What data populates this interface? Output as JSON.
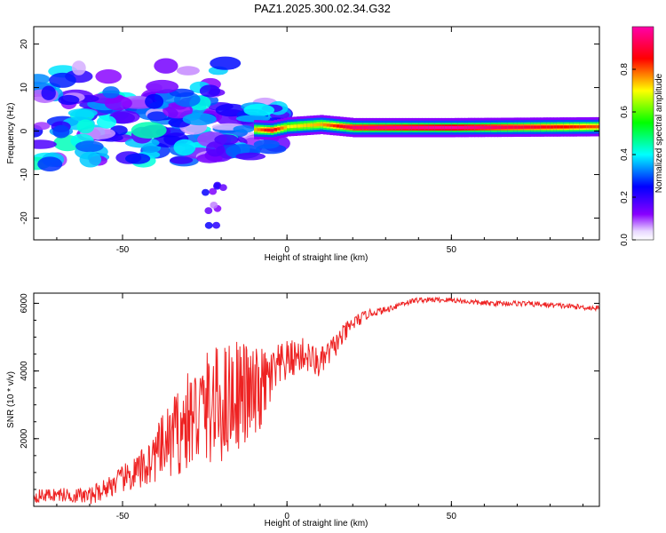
{
  "title": "PAZ1.2025.300.02.34.G32",
  "chart_data": [
    {
      "type": "heatmap",
      "xlabel": "Height of straight line (km)",
      "ylabel": "Frequency (Hz)",
      "xlim": [
        -77,
        95
      ],
      "ylim": [
        -25,
        24
      ],
      "xticks": [
        -50,
        0,
        50
      ],
      "yticks": [
        -20,
        -10,
        0,
        10,
        20
      ],
      "colorbar": {
        "label": "Normalized spectral amplitude",
        "range": [
          0.0,
          1.0
        ],
        "ticks": [
          "0.0",
          "0.2",
          "0.4",
          "0.6",
          "0.8"
        ],
        "tick_values": [
          0.0,
          0.2,
          0.4,
          0.6,
          0.8
        ]
      },
      "ridge": {
        "description_x": [
          -77,
          -60,
          -40,
          -25,
          -15,
          -5,
          0,
          10,
          20,
          50,
          95
        ],
        "center_freq": [
          2.0,
          1.0,
          0.5,
          0.2,
          0.5,
          0.2,
          1.0,
          1.5,
          0.8,
          0.8,
          1.0
        ],
        "peak_amplitude": [
          0.3,
          0.3,
          0.35,
          0.35,
          0.6,
          0.9,
          0.7,
          0.75,
          0.95,
          1.0,
          0.8
        ]
      }
    },
    {
      "type": "line",
      "xlabel": "Height of straight line (km)",
      "ylabel": "SNR (10 * v/v)",
      "xlim": [
        -77,
        95
      ],
      "ylim": [
        0,
        6300
      ],
      "xticks": [
        -50,
        0,
        50
      ],
      "yticks": [
        2000,
        4000,
        6000
      ],
      "series": [
        {
          "name": "SNR",
          "color": "#ee2222",
          "x": [
            -77,
            -70,
            -60,
            -50,
            -45,
            -40,
            -35,
            -30,
            -25,
            -20,
            -15,
            -10,
            -5,
            0,
            5,
            10,
            15,
            20,
            25,
            30,
            35,
            40,
            50,
            60,
            70,
            80,
            95
          ],
          "y": [
            300,
            350,
            300,
            800,
            1000,
            1500,
            2000,
            2500,
            2900,
            3000,
            3400,
            3200,
            3800,
            4300,
            4500,
            4200,
            4800,
            5400,
            5700,
            5800,
            6000,
            6100,
            6100,
            6000,
            6000,
            5950,
            5850
          ],
          "noise": [
            200,
            200,
            250,
            400,
            600,
            800,
            1200,
            1500,
            1700,
            1800,
            1700,
            1500,
            900,
            600,
            500,
            450,
            350,
            250,
            120,
            100,
            100,
            80,
            80,
            80,
            80,
            80,
            80
          ]
        }
      ]
    }
  ]
}
